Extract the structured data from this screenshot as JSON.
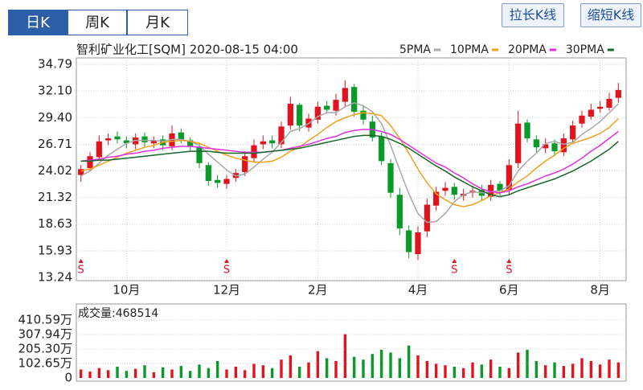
{
  "tabs": [
    "日K",
    "周K",
    "月K"
  ],
  "buttons": [
    "拉长K线",
    "缩短K线"
  ],
  "chart_data": [
    {
      "type": "candlestick",
      "title": "智利矿业化工[SQM] 2020-08-15 04:00",
      "categories": [
        null,
        null,
        null,
        null,
        null,
        "10月",
        null,
        null,
        null,
        null,
        null,
        null,
        null,
        null,
        null,
        null,
        "12月",
        null,
        null,
        null,
        null,
        null,
        null,
        null,
        null,
        null,
        "2月",
        null,
        null,
        null,
        null,
        null,
        null,
        null,
        null,
        null,
        null,
        "4月",
        null,
        null,
        null,
        null,
        null,
        null,
        null,
        null,
        null,
        "6月",
        null,
        null,
        null,
        null,
        null,
        null,
        null,
        null,
        null,
        "8月",
        null,
        null
      ],
      "signals": [
        "S",
        null,
        null,
        null,
        null,
        null,
        null,
        null,
        null,
        null,
        null,
        null,
        null,
        null,
        null,
        null,
        "S",
        null,
        null,
        null,
        null,
        null,
        null,
        null,
        null,
        null,
        null,
        null,
        null,
        null,
        null,
        null,
        null,
        null,
        null,
        null,
        null,
        null,
        null,
        null,
        null,
        "S",
        null,
        null,
        null,
        null,
        null,
        "S",
        null,
        null,
        null,
        null,
        null,
        null,
        null,
        null,
        null,
        null,
        null,
        null
      ],
      "open": [
        23.6,
        24.3,
        25.4,
        27.1,
        27.5,
        27.1,
        26.7,
        27.5,
        26.8,
        27.2,
        26.5,
        27.9,
        27.1,
        26.4,
        24.6,
        23.1,
        22.7,
        23.3,
        23.9,
        25.3,
        26.7,
        27.1,
        26.7,
        28.6,
        30.7,
        28.4,
        29.2,
        30.6,
        30.1,
        31.0,
        32.5,
        30.1,
        29.0,
        27.5,
        24.8,
        21.6,
        18.0,
        15.6,
        17.9,
        20.5,
        22.0,
        22.4,
        21.5,
        21.8,
        22.1,
        21.4,
        22.7,
        22.1,
        24.8,
        28.9,
        27.2,
        26.3,
        26.8,
        25.9,
        27.2,
        28.8,
        29.5,
        30.3,
        30.4,
        31.4
      ],
      "high": [
        24.6,
        25.9,
        27.6,
        27.8,
        28.0,
        27.5,
        27.8,
        27.9,
        27.5,
        27.6,
        28.6,
        28.3,
        27.4,
        26.8,
        24.9,
        23.6,
        23.6,
        24.2,
        26.0,
        27.2,
        27.6,
        27.6,
        29.0,
        31.5,
        30.9,
        29.8,
        31.0,
        31.1,
        31.8,
        33.2,
        32.8,
        30.6,
        29.6,
        27.9,
        25.2,
        22.3,
        18.5,
        18.4,
        21.2,
        22.4,
        22.9,
        22.8,
        22.2,
        22.5,
        22.6,
        23.1,
        23.0,
        25.2,
        30.1,
        29.2,
        27.6,
        27.3,
        27.2,
        27.8,
        29.1,
        30.1,
        30.8,
        31.1,
        31.9,
        32.9
      ],
      "low": [
        22.9,
        24.0,
        25.0,
        26.6,
        26.8,
        26.3,
        26.2,
        26.4,
        26.3,
        26.1,
        26.1,
        26.8,
        26.0,
        24.3,
        22.5,
        22.3,
        22.2,
        22.9,
        23.5,
        24.9,
        26.2,
        26.3,
        26.3,
        28.2,
        28.0,
        28.0,
        28.8,
        29.8,
        29.6,
        30.5,
        29.5,
        28.7,
        27.0,
        24.6,
        21.3,
        17.5,
        15.2,
        15.0,
        17.3,
        20.0,
        21.5,
        21.1,
        21.0,
        21.3,
        21.0,
        21.0,
        21.5,
        21.6,
        24.3,
        26.9,
        25.9,
        25.8,
        25.5,
        25.5,
        26.8,
        28.4,
        29.2,
        29.9,
        30.1,
        30.9
      ],
      "close": [
        24.2,
        25.5,
        27.0,
        27.3,
        27.2,
        26.8,
        27.4,
        26.9,
        27.1,
        26.6,
        27.8,
        27.2,
        26.5,
        24.8,
        23.0,
        22.8,
        23.2,
        23.8,
        25.5,
        26.6,
        27.0,
        26.8,
        28.5,
        30.8,
        28.6,
        29.3,
        30.5,
        30.2,
        31.2,
        32.4,
        30.0,
        29.2,
        27.4,
        25.0,
        21.8,
        18.2,
        15.8,
        17.8,
        20.6,
        21.9,
        22.3,
        21.6,
        21.7,
        22.0,
        21.5,
        22.6,
        22.0,
        24.6,
        28.8,
        27.3,
        26.4,
        26.7,
        26.0,
        27.3,
        28.6,
        29.6,
        30.2,
        30.5,
        31.3,
        32.2
      ],
      "up_color": "#e0141e",
      "down_color": "#0a9a2a",
      "series": [
        {
          "name": "5PMA",
          "color": "#a8a8a8",
          "values": [
            23.5,
            24.0,
            24.8,
            25.6,
            26.2,
            26.8,
            27.1,
            27.1,
            27.1,
            27.0,
            27.2,
            27.2,
            27.0,
            26.6,
            25.7,
            24.9,
            24.1,
            23.5,
            23.7,
            24.4,
            25.2,
            25.9,
            26.9,
            28.0,
            28.3,
            28.8,
            29.5,
            29.9,
            29.9,
            30.5,
            30.9,
            30.6,
            30.0,
            28.8,
            26.6,
            24.1,
            21.7,
            19.7,
            18.8,
            18.9,
            19.7,
            20.9,
            21.6,
            21.9,
            21.8,
            21.9,
            22.0,
            22.5,
            24.0,
            25.0,
            25.8,
            26.8,
            27.0,
            26.7,
            26.9,
            27.7,
            28.3,
            29.0,
            29.9,
            30.8
          ]
        },
        {
          "name": "10PMA",
          "color": "#f0a020",
          "values": [
            24.0,
            24.2,
            24.6,
            25.0,
            25.4,
            25.8,
            26.1,
            26.4,
            26.6,
            26.9,
            27.0,
            27.1,
            27.0,
            26.8,
            26.4,
            26.0,
            25.6,
            25.3,
            25.1,
            24.9,
            24.9,
            25.0,
            25.4,
            26.0,
            26.4,
            27.1,
            27.7,
            28.4,
            29.0,
            29.4,
            29.7,
            29.9,
            29.8,
            29.6,
            28.6,
            27.3,
            25.8,
            24.2,
            22.8,
            21.7,
            21.1,
            20.6,
            20.4,
            20.6,
            21.0,
            21.5,
            21.8,
            22.2,
            22.9,
            23.5,
            24.3,
            25.0,
            25.6,
            26.3,
            26.8,
            27.1,
            27.4,
            27.8,
            28.4,
            29.3
          ]
        },
        {
          "name": "20PMA",
          "color": "#e030e0",
          "values": [
            25.0,
            25.1,
            25.2,
            25.4,
            25.5,
            25.7,
            25.8,
            26.0,
            26.1,
            26.3,
            26.4,
            26.5,
            26.5,
            26.4,
            26.3,
            26.2,
            26.1,
            26.0,
            25.9,
            25.9,
            25.9,
            26.0,
            26.1,
            26.3,
            26.5,
            26.7,
            27.0,
            27.3,
            27.5,
            27.9,
            28.1,
            28.2,
            28.2,
            28.0,
            27.7,
            27.2,
            26.6,
            26.0,
            25.4,
            24.8,
            24.4,
            23.8,
            23.3,
            22.7,
            22.2,
            21.9,
            21.8,
            22.0,
            22.4,
            22.7,
            23.1,
            23.5,
            23.8,
            24.2,
            24.7,
            25.3,
            26.0,
            26.6,
            27.3,
            28.0
          ]
        },
        {
          "name": "30PMA",
          "color": "#17662a",
          "values": [
            25.0,
            25.0,
            25.1,
            25.1,
            25.2,
            25.3,
            25.4,
            25.5,
            25.6,
            25.7,
            25.8,
            25.9,
            26.0,
            26.0,
            26.0,
            25.9,
            25.8,
            25.8,
            25.8,
            25.8,
            25.9,
            26.0,
            26.1,
            26.2,
            26.3,
            26.5,
            26.7,
            26.9,
            27.1,
            27.3,
            27.5,
            27.6,
            27.6,
            27.5,
            27.2,
            26.8,
            26.3,
            25.7,
            25.1,
            24.5,
            24.0,
            23.4,
            22.9,
            22.4,
            22.0,
            21.6,
            21.4,
            21.6,
            22.0,
            22.3,
            22.6,
            22.9,
            23.2,
            23.6,
            24.0,
            24.5,
            25.0,
            25.6,
            26.2,
            27.0
          ]
        }
      ],
      "ylim": [
        13.24,
        34.79
      ],
      "yticks": [
        34.79,
        {
          "value": 32.1,
          "label": "32.10"
        },
        {
          "value": 29.4,
          "label": "29.40"
        },
        26.71,
        24.02,
        21.32,
        18.63,
        15.93,
        13.24
      ],
      "grid": true
    },
    {
      "type": "bar",
      "title": "成交量:468514",
      "values": [
        60,
        45,
        70,
        55,
        80,
        50,
        65,
        90,
        40,
        75,
        60,
        85,
        50,
        95,
        70,
        120,
        60,
        80,
        55,
        100,
        90,
        70,
        130,
        160,
        80,
        110,
        190,
        140,
        120,
        310,
        150,
        130,
        170,
        200,
        180,
        140,
        230,
        160,
        120,
        100,
        90,
        80,
        70,
        110,
        95,
        130,
        80,
        70,
        180,
        200,
        120,
        90,
        110,
        85,
        100,
        140,
        120,
        95,
        130,
        110
      ],
      "ylim": [
        0,
        410.59
      ],
      "yticks": [
        {
          "value": 410.59,
          "label": "410.59万"
        },
        {
          "value": 307.94,
          "label": "307.94万"
        },
        {
          "value": 205.3,
          "label": "205.30万"
        },
        {
          "value": 102.65,
          "label": "102.65万"
        },
        0
      ],
      "grid": true
    }
  ]
}
